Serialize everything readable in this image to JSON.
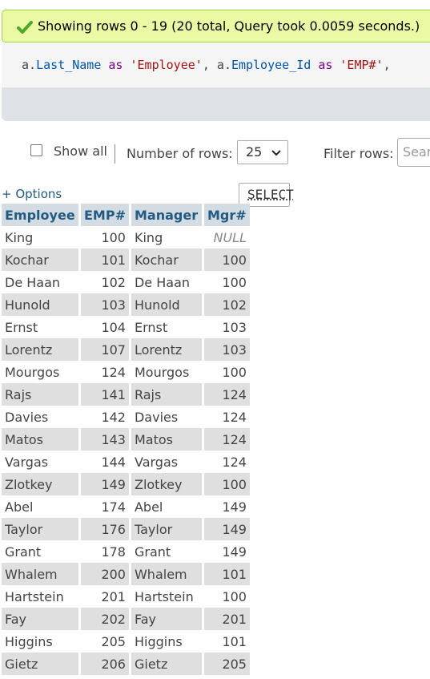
{
  "status": {
    "message": "Showing rows 0 - 19 (20 total, Query took 0.0059 seconds.)",
    "icon": "check-icon",
    "bg_color": "#ebf8a4"
  },
  "sql": {
    "select_kw": "SELECT",
    "alias1": "a.",
    "col1": "Last_Name",
    "as1": "as",
    "str1": "'Employee'",
    "sep1": ", ",
    "alias2": "a.",
    "col2": "Employee_Id",
    "as2": "as",
    "str2": "'EMP#'",
    "tail": ","
  },
  "controls": {
    "show_all_label": "Show all",
    "rows_label": "Number of rows:",
    "rows_value": "25",
    "filter_label": "Filter rows:",
    "filter_placeholder": "Search"
  },
  "options_link": "+ Options",
  "table": {
    "headers": [
      "Employee",
      "EMP#",
      "Manager",
      "Mgr#"
    ],
    "rows": [
      [
        "King",
        "100",
        "King",
        "NULL"
      ],
      [
        "Kochar",
        "101",
        "Kochar",
        "100"
      ],
      [
        "De Haan",
        "102",
        "De Haan",
        "100"
      ],
      [
        "Hunold",
        "103",
        "Hunold",
        "102"
      ],
      [
        "Ernst",
        "104",
        "Ernst",
        "103"
      ],
      [
        "Lorentz",
        "107",
        "Lorentz",
        "103"
      ],
      [
        "Mourgos",
        "124",
        "Mourgos",
        "100"
      ],
      [
        "Rajs",
        "141",
        "Rajs",
        "124"
      ],
      [
        "Davies",
        "142",
        "Davies",
        "124"
      ],
      [
        "Matos",
        "143",
        "Matos",
        "124"
      ],
      [
        "Vargas",
        "144",
        "Vargas",
        "124"
      ],
      [
        "Zlotkey",
        "149",
        "Zlotkey",
        "100"
      ],
      [
        "Abel",
        "174",
        "Abel",
        "149"
      ],
      [
        "Taylor",
        "176",
        "Taylor",
        "149"
      ],
      [
        "Grant",
        "178",
        "Grant",
        "149"
      ],
      [
        "Whalem",
        "200",
        "Whalem",
        "101"
      ],
      [
        "Hartstein",
        "201",
        "Hartstein",
        "100"
      ],
      [
        "Fay",
        "202",
        "Fay",
        "201"
      ],
      [
        "Higgins",
        "205",
        "Higgins",
        "101"
      ],
      [
        "Gietz",
        "206",
        "Gietz",
        "205"
      ]
    ]
  }
}
